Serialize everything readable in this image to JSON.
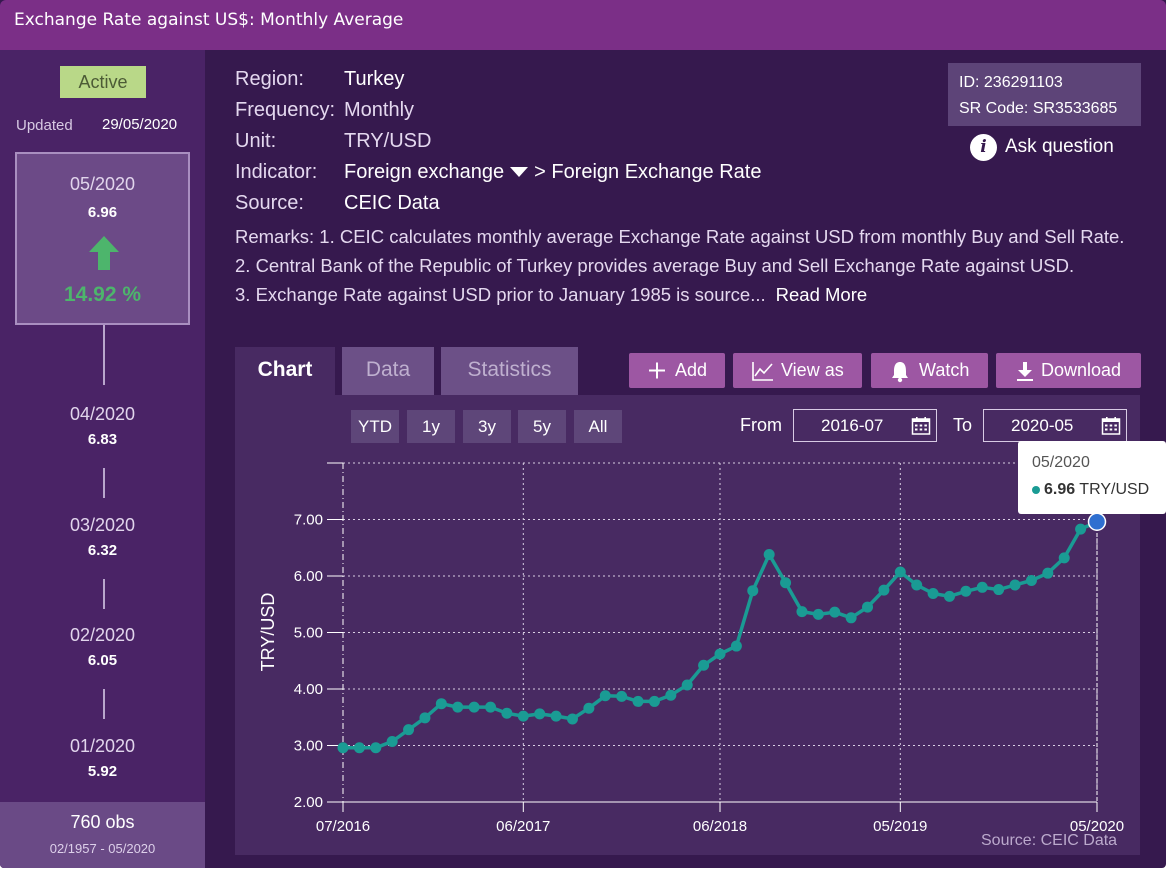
{
  "window": {
    "title": "Exchange Rate against US$: Monthly Average"
  },
  "sidebar": {
    "status": "Active",
    "updated_label": "Updated",
    "updated_date": "29/05/2020",
    "current": {
      "period": "05/2020",
      "value": "6.96",
      "change_pct": "14.92 %",
      "direction_icon": "arrow-up-icon",
      "change_color": "#4db56c"
    },
    "history": [
      {
        "period": "04/2020",
        "value": "6.83"
      },
      {
        "period": "03/2020",
        "value": "6.32"
      },
      {
        "period": "02/2020",
        "value": "6.05"
      },
      {
        "period": "01/2020",
        "value": "5.92"
      }
    ],
    "obs": "760 obs",
    "obs_range": "02/1957 - 05/2020"
  },
  "meta": {
    "region_label": "Region:",
    "region": "Turkey",
    "frequency_label": "Frequency:",
    "frequency": "Monthly",
    "unit_label": "Unit:",
    "unit": "TRY/USD",
    "indicator_label": "Indicator:",
    "indicator_main": "Foreign exchange",
    "indicator_sub": "> Foreign Exchange Rate",
    "source_label": "Source:",
    "source": "CEIC Data",
    "id": "ID: 236291103",
    "sr_code": "SR Code: SR3533685",
    "ask_question": "Ask question",
    "remarks_1": "Remarks: 1. CEIC calculates monthly average Exchange Rate against USD from monthly Buy and Sell Rate.",
    "remarks_2": "2. Central Bank of the Republic of Turkey provides average Buy and Sell Exchange Rate against USD.",
    "remarks_3": "3. Exchange Rate against USD prior to January 1985 is source...",
    "read_more": "Read More"
  },
  "tabs": [
    {
      "label": "Chart",
      "active": true
    },
    {
      "label": "Data",
      "active": false
    },
    {
      "label": "Statistics",
      "active": false
    }
  ],
  "actions": {
    "add": {
      "label": "Add",
      "icon": "plus-icon"
    },
    "view_as": {
      "label": "View as",
      "icon": "line-chart-icon"
    },
    "watch": {
      "label": "Watch",
      "icon": "bell-icon"
    },
    "download": {
      "label": "Download",
      "icon": "download-icon"
    }
  },
  "range_buttons": [
    "YTD",
    "1y",
    "3y",
    "5y",
    "All"
  ],
  "date_range": {
    "from_label": "From",
    "from": "2016-07",
    "to_label": "To",
    "to": "2020-05"
  },
  "tooltip": {
    "period": "05/2020",
    "value": "6.96",
    "unit": "TRY/USD"
  },
  "source_note": "Source: CEIC Data",
  "colors": {
    "line": "#1a9b94",
    "highlight": "#2f6fd0",
    "accent": "#9d57a3",
    "up": "#4db56c"
  },
  "chart_data": {
    "type": "line",
    "ylabel": "TRY/USD",
    "xlabel": "",
    "ylim": [
      2.0,
      8.0
    ],
    "yticks": [
      "2.00",
      "3.00",
      "4.00",
      "5.00",
      "6.00",
      "7.00"
    ],
    "xticks": [
      "07/2016",
      "06/2017",
      "06/2018",
      "05/2019",
      "05/2020"
    ],
    "grid": true,
    "series": [
      {
        "x": [
          "07/2016",
          "08/2016",
          "09/2016",
          "10/2016",
          "11/2016",
          "12/2016",
          "01/2017",
          "02/2017",
          "03/2017",
          "04/2017",
          "05/2017",
          "06/2017",
          "07/2017",
          "08/2017",
          "09/2017",
          "10/2017",
          "11/2017",
          "12/2017",
          "01/2018",
          "02/2018",
          "03/2018",
          "04/2018",
          "05/2018",
          "06/2018",
          "07/2018",
          "08/2018",
          "09/2018",
          "10/2018",
          "11/2018",
          "12/2018",
          "01/2019",
          "02/2019",
          "03/2019",
          "04/2019",
          "05/2019",
          "06/2019",
          "07/2019",
          "08/2019",
          "09/2019",
          "10/2019",
          "11/2019",
          "12/2019",
          "01/2020",
          "02/2020",
          "03/2020",
          "04/2020",
          "05/2020"
        ],
        "values": [
          2.96,
          2.96,
          2.96,
          3.07,
          3.28,
          3.49,
          3.74,
          3.68,
          3.68,
          3.68,
          3.57,
          3.52,
          3.56,
          3.52,
          3.47,
          3.66,
          3.88,
          3.87,
          3.78,
          3.78,
          3.89,
          4.07,
          4.42,
          4.62,
          4.76,
          5.74,
          6.38,
          5.88,
          5.37,
          5.32,
          5.36,
          5.26,
          5.45,
          5.75,
          6.07,
          5.84,
          5.69,
          5.64,
          5.73,
          5.8,
          5.76,
          5.84,
          5.92,
          6.05,
          6.32,
          6.83,
          6.96
        ]
      }
    ],
    "highlight": {
      "x": "05/2020",
      "value": 6.96
    }
  }
}
